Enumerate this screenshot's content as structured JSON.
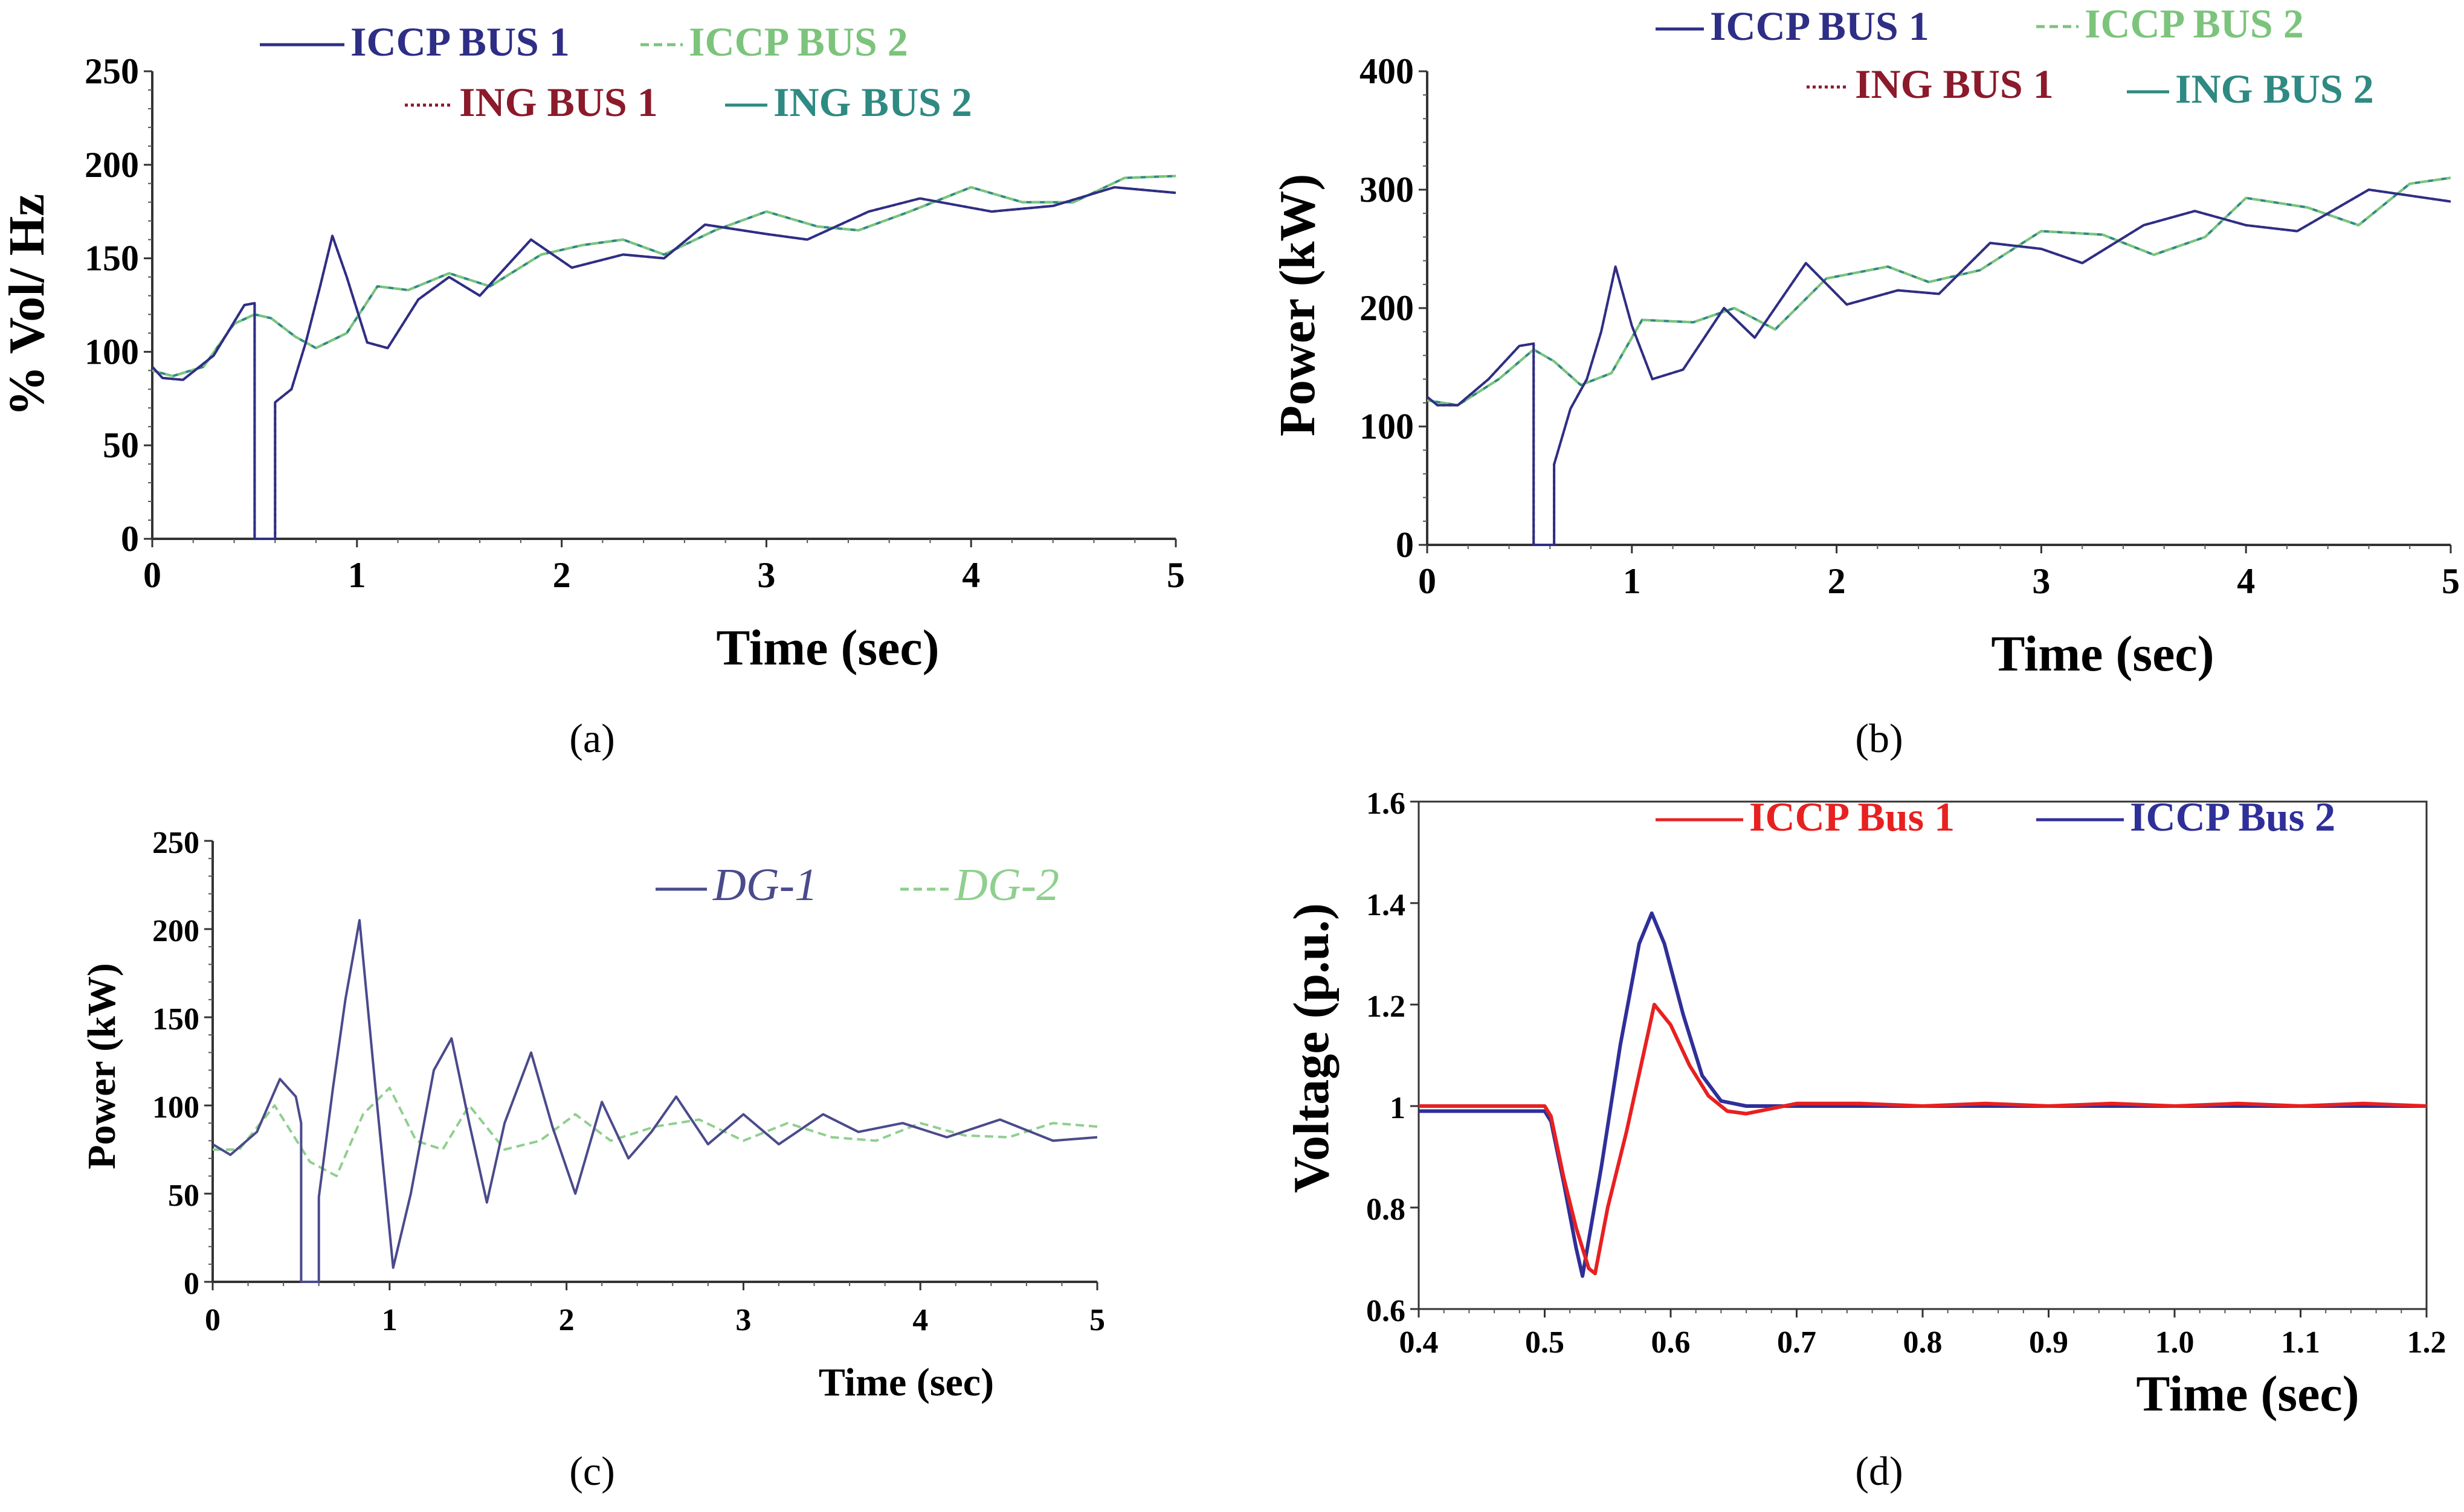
{
  "chart_data": [
    {
      "id": "a",
      "type": "line",
      "panel_label": "(a)",
      "xlabel": "Time (sec)",
      "ylabel": "% Vol/ Hz",
      "xlim": [
        0,
        5
      ],
      "ylim": [
        0,
        250
      ],
      "xticks": [
        "0",
        "1",
        "2",
        "3",
        "4",
        "5"
      ],
      "yticks": [
        "0",
        "50",
        "100",
        "150",
        "200",
        "250"
      ],
      "legend_rows": [
        [
          0,
          1
        ],
        [
          2,
          3
        ]
      ],
      "series": [
        {
          "name": "ICCP BUS 1",
          "color": "#2e2e86",
          "dash": "",
          "x": [
            0,
            0.05,
            0.15,
            0.3,
            0.45,
            0.5,
            0.5,
            0.5,
            0.6,
            0.6,
            0.68,
            0.75,
            0.82,
            0.88,
            0.95,
            1.05,
            1.15,
            1.3,
            1.45,
            1.6,
            1.85,
            2.05,
            2.3,
            2.5,
            2.7,
            3.0,
            3.2,
            3.5,
            3.75,
            4.1,
            4.4,
            4.7,
            5.0
          ],
          "y": [
            92,
            86,
            85,
            98,
            125,
            126,
            0,
            0,
            0,
            73,
            80,
            105,
            135,
            162,
            140,
            105,
            102,
            128,
            140,
            130,
            160,
            145,
            152,
            150,
            168,
            163,
            160,
            175,
            182,
            175,
            178,
            188,
            185
          ]
        },
        {
          "name": "ICCP BUS 2",
          "color": "#7cc47c",
          "dash": "14,8",
          "x": [
            0,
            0.1,
            0.25,
            0.4,
            0.5,
            0.58,
            0.7,
            0.8,
            0.95,
            1.1,
            1.25,
            1.45,
            1.65,
            1.9,
            2.1,
            2.3,
            2.5,
            2.75,
            3.0,
            3.25,
            3.45,
            3.7,
            4.0,
            4.25,
            4.5,
            4.75,
            5.0
          ],
          "y": [
            90,
            87,
            92,
            115,
            120,
            118,
            108,
            102,
            110,
            135,
            133,
            142,
            135,
            152,
            157,
            160,
            152,
            165,
            175,
            167,
            165,
            175,
            188,
            180,
            180,
            193,
            194
          ]
        },
        {
          "name": "ING BUS 1",
          "color": "#8b1a2b",
          "dash": "5,5",
          "x": [
            0,
            0.05,
            0.15,
            0.3,
            0.45,
            0.5,
            0.5,
            0.5,
            0.6,
            0.6,
            0.68,
            0.75,
            0.82,
            0.88,
            0.95,
            1.05,
            1.15,
            1.3,
            1.45,
            1.6,
            1.85,
            2.05,
            2.3,
            2.5,
            2.7,
            3.0,
            3.2,
            3.5,
            3.75,
            4.1,
            4.4,
            4.7,
            5.0
          ],
          "y": [
            92,
            86,
            85,
            98,
            125,
            126,
            0,
            0,
            0,
            73,
            80,
            105,
            135,
            162,
            140,
            105,
            102,
            128,
            140,
            130,
            160,
            145,
            152,
            150,
            168,
            163,
            160,
            175,
            182,
            175,
            178,
            188,
            185
          ]
        },
        {
          "name": "ING BUS 2",
          "color": "#2e8a82",
          "dash": "",
          "x": [
            0,
            0.1,
            0.25,
            0.4,
            0.5,
            0.58,
            0.7,
            0.8,
            0.95,
            1.1,
            1.25,
            1.45,
            1.65,
            1.9,
            2.1,
            2.3,
            2.5,
            2.75,
            3.0,
            3.25,
            3.45,
            3.7,
            4.0,
            4.25,
            4.5,
            4.75,
            5.0
          ],
          "y": [
            90,
            87,
            92,
            115,
            120,
            118,
            108,
            102,
            110,
            135,
            133,
            142,
            135,
            152,
            157,
            160,
            152,
            165,
            175,
            167,
            165,
            175,
            188,
            180,
            180,
            193,
            194
          ]
        }
      ]
    },
    {
      "id": "b",
      "type": "line",
      "panel_label": "(b)",
      "xlabel": "Time (sec)",
      "ylabel": "Power (kW)",
      "xlim": [
        0,
        5
      ],
      "ylim": [
        0,
        400
      ],
      "xticks": [
        "0",
        "1",
        "2",
        "3",
        "4",
        "5"
      ],
      "yticks": [
        "0",
        "100",
        "200",
        "300",
        "400"
      ],
      "legend_rows": [
        [
          0,
          1
        ],
        [
          2,
          3
        ]
      ],
      "series": [
        {
          "name": "ICCP BUS 1",
          "color": "#2e2e86",
          "dash": "",
          "x": [
            0,
            0.05,
            0.15,
            0.3,
            0.45,
            0.52,
            0.52,
            0.52,
            0.62,
            0.62,
            0.7,
            0.78,
            0.85,
            0.92,
            1.0,
            1.1,
            1.25,
            1.45,
            1.6,
            1.85,
            2.05,
            2.3,
            2.5,
            2.75,
            3.0,
            3.2,
            3.5,
            3.75,
            4.0,
            4.25,
            4.6,
            5.0
          ],
          "y": [
            125,
            118,
            118,
            140,
            168,
            170,
            0,
            0,
            0,
            68,
            115,
            140,
            180,
            235,
            185,
            140,
            148,
            200,
            175,
            238,
            203,
            215,
            212,
            255,
            250,
            238,
            270,
            282,
            270,
            265,
            300,
            290
          ]
        },
        {
          "name": "ICCP BUS 2",
          "color": "#7cc47c",
          "dash": "14,8",
          "x": [
            0,
            0.15,
            0.35,
            0.52,
            0.62,
            0.75,
            0.9,
            1.05,
            1.3,
            1.5,
            1.7,
            1.95,
            2.25,
            2.45,
            2.7,
            3.0,
            3.3,
            3.55,
            3.8,
            4.0,
            4.3,
            4.55,
            4.8,
            5.0
          ],
          "y": [
            122,
            118,
            140,
            165,
            155,
            135,
            145,
            190,
            188,
            200,
            182,
            225,
            235,
            222,
            232,
            265,
            262,
            245,
            260,
            293,
            285,
            270,
            305,
            310
          ]
        },
        {
          "name": "ING BUS 1",
          "color": "#8b1a2b",
          "dash": "5,5",
          "x": [
            0,
            0.05,
            0.15,
            0.3,
            0.45,
            0.52,
            0.52,
            0.52,
            0.62,
            0.62,
            0.7,
            0.78,
            0.85,
            0.92,
            1.0,
            1.1,
            1.25,
            1.45,
            1.6,
            1.85,
            2.05,
            2.3,
            2.5,
            2.75,
            3.0,
            3.2,
            3.5,
            3.75,
            4.0,
            4.25,
            4.6,
            5.0
          ],
          "y": [
            125,
            118,
            118,
            140,
            168,
            170,
            0,
            0,
            0,
            68,
            115,
            140,
            180,
            235,
            185,
            140,
            148,
            200,
            175,
            238,
            203,
            215,
            212,
            255,
            250,
            238,
            270,
            282,
            270,
            265,
            300,
            290
          ]
        },
        {
          "name": "ING BUS 2",
          "color": "#2e8a82",
          "dash": "",
          "x": [
            0,
            0.15,
            0.35,
            0.52,
            0.62,
            0.75,
            0.9,
            1.05,
            1.3,
            1.5,
            1.7,
            1.95,
            2.25,
            2.45,
            2.7,
            3.0,
            3.3,
            3.55,
            3.8,
            4.0,
            4.3,
            4.55,
            4.8,
            5.0
          ],
          "y": [
            122,
            118,
            140,
            165,
            155,
            135,
            145,
            190,
            188,
            200,
            182,
            225,
            235,
            222,
            232,
            265,
            262,
            245,
            260,
            293,
            285,
            270,
            305,
            310
          ]
        }
      ]
    },
    {
      "id": "c",
      "type": "line",
      "panel_label": "(c)",
      "xlabel": "Time (sec)",
      "ylabel": "Power (kW)",
      "xlim": [
        0,
        5
      ],
      "ylim": [
        0,
        250
      ],
      "xticks": [
        "0",
        "1",
        "2",
        "3",
        "4",
        "5"
      ],
      "yticks": [
        "0",
        "50",
        "100",
        "150",
        "200",
        "250"
      ],
      "legend_rows": [
        [
          0,
          1
        ]
      ],
      "series": [
        {
          "name": "DG-1",
          "color": "#4a4a8c",
          "dash": "",
          "x": [
            0,
            0.1,
            0.25,
            0.38,
            0.47,
            0.5,
            0.5,
            0.5,
            0.6,
            0.6,
            0.68,
            0.75,
            0.83,
            0.92,
            1.02,
            1.12,
            1.25,
            1.35,
            1.45,
            1.55,
            1.65,
            1.8,
            1.92,
            2.05,
            2.2,
            2.35,
            2.48,
            2.62,
            2.8,
            3.0,
            3.2,
            3.45,
            3.65,
            3.9,
            4.15,
            4.45,
            4.75,
            5.0
          ],
          "y": [
            78,
            72,
            85,
            115,
            105,
            90,
            0,
            0,
            0,
            48,
            110,
            160,
            205,
            110,
            8,
            50,
            120,
            138,
            90,
            45,
            90,
            130,
            88,
            50,
            102,
            70,
            85,
            105,
            78,
            95,
            78,
            95,
            85,
            90,
            82,
            92,
            80,
            82
          ]
        },
        {
          "name": "DG-2",
          "color": "#8fcf8f",
          "dash": "14,8",
          "x": [
            0,
            0.15,
            0.35,
            0.55,
            0.7,
            0.85,
            1.0,
            1.15,
            1.3,
            1.45,
            1.65,
            1.85,
            2.05,
            2.25,
            2.5,
            2.75,
            3.0,
            3.25,
            3.5,
            3.75,
            4.0,
            4.25,
            4.5,
            4.75,
            5.0
          ],
          "y": [
            75,
            75,
            100,
            68,
            60,
            95,
            110,
            80,
            75,
            100,
            75,
            80,
            95,
            80,
            88,
            92,
            80,
            90,
            82,
            80,
            90,
            83,
            82,
            90,
            88
          ]
        }
      ]
    },
    {
      "id": "d",
      "type": "line",
      "panel_label": "(d)",
      "xlabel": "Time (sec)",
      "ylabel": "Voltage (p.u.)",
      "xlim": [
        0.4,
        1.2
      ],
      "ylim": [
        0.6,
        1.6
      ],
      "xticks": [
        "0.4",
        "0.5",
        "0.6",
        "0.7",
        "0.8",
        "0.9",
        "1.0",
        "1.1",
        "1.2"
      ],
      "yticks": [
        "0.6",
        "0.8",
        "1",
        "1.2",
        "1.4",
        "1.6"
      ],
      "legend_rows": [
        [
          0,
          1
        ]
      ],
      "series": [
        {
          "name": "ICCP Bus 1",
          "color": "#e82020",
          "dash": "",
          "x": [
            0.4,
            0.45,
            0.5,
            0.505,
            0.515,
            0.525,
            0.535,
            0.54,
            0.55,
            0.565,
            0.58,
            0.587,
            0.6,
            0.615,
            0.63,
            0.645,
            0.66,
            0.68,
            0.7,
            0.75,
            0.8,
            0.85,
            0.9,
            0.95,
            1.0,
            1.05,
            1.1,
            1.15,
            1.2
          ],
          "y": [
            1.0,
            1.0,
            1.0,
            0.98,
            0.86,
            0.76,
            0.68,
            0.67,
            0.8,
            0.95,
            1.12,
            1.2,
            1.16,
            1.08,
            1.02,
            0.99,
            0.985,
            0.995,
            1.005,
            1.005,
            1.0,
            1.005,
            1.0,
            1.005,
            1.0,
            1.005,
            1.0,
            1.005,
            1.0
          ]
        },
        {
          "name": "ICCP Bus 2",
          "color": "#2f2f9a",
          "dash": "",
          "x": [
            0.4,
            0.45,
            0.5,
            0.505,
            0.515,
            0.525,
            0.53,
            0.545,
            0.56,
            0.575,
            0.585,
            0.595,
            0.61,
            0.625,
            0.64,
            0.66,
            0.7,
            0.8,
            0.9,
            1.0,
            1.1,
            1.2
          ],
          "y": [
            0.99,
            0.99,
            0.99,
            0.97,
            0.85,
            0.72,
            0.665,
            0.88,
            1.12,
            1.32,
            1.38,
            1.32,
            1.18,
            1.06,
            1.01,
            1.0,
            1.0,
            1.0,
            1.0,
            1.0,
            1.0,
            1.0
          ]
        }
      ]
    }
  ]
}
